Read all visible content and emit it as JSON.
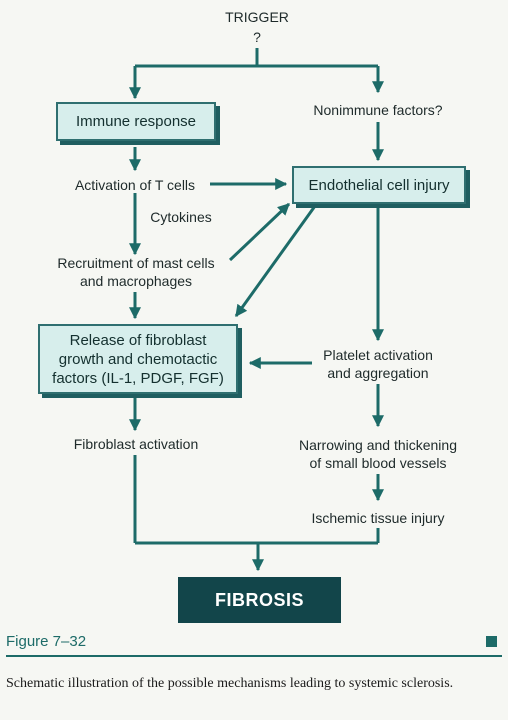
{
  "diagram": {
    "trigger": "TRIGGER",
    "trigger_question": "?",
    "immune_response": "Immune response",
    "nonimmune_factors": "Nonimmune factors?",
    "activation_t_cells": "Activation of T cells",
    "endothelial_injury": "Endothelial cell injury",
    "cytokines": "Cytokines",
    "recruitment_line1": "Recruitment of mast cells",
    "recruitment_line2": "and macrophages",
    "release_line1": "Release of fibroblast",
    "release_line2": "growth and chemotactic",
    "release_line3": "factors (IL-1, PDGF, FGF)",
    "platelet_line1": "Platelet activation",
    "platelet_line2": "and aggregation",
    "fibroblast_activation": "Fibroblast activation",
    "narrowing_line1": "Narrowing and thickening",
    "narrowing_line2": "of small blood vessels",
    "ischemic": "Ischemic tissue injury",
    "fibrosis": "FIBROSIS"
  },
  "figure": {
    "label": "Figure 7–32",
    "caption": "Schematic illustration of the possible mechanisms leading to systemic sclerosis."
  },
  "colors": {
    "arrow": "#1d6b68",
    "box_fill": "#d7eeec",
    "fibrosis_fill": "#12454a"
  }
}
